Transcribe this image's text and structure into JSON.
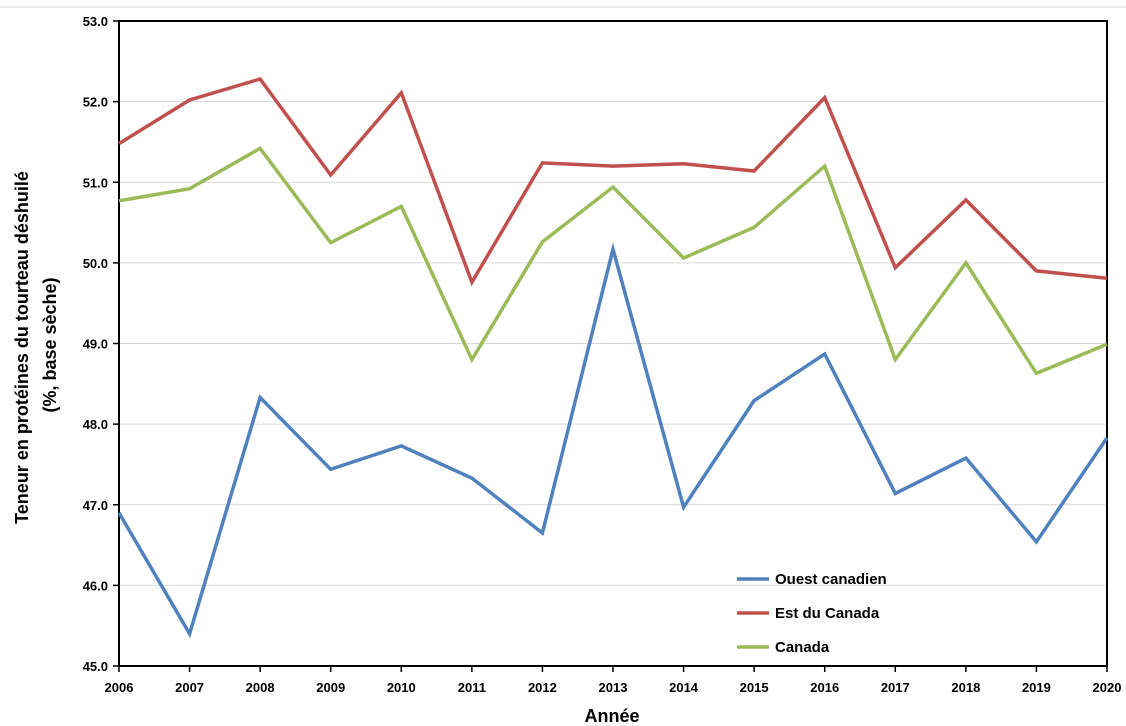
{
  "chart_data": {
    "type": "line",
    "title": "",
    "xlabel": "Année",
    "ylabel_lines": [
      "Teneur en protéines du tourteau déshuilé",
      "(%, base sèche)"
    ],
    "categories": [
      "2006",
      "2007",
      "2008",
      "2009",
      "2010",
      "2011",
      "2012",
      "2013",
      "2014",
      "2015",
      "2016",
      "2017",
      "2018",
      "2019",
      "2020"
    ],
    "ylim": [
      45.0,
      53.0
    ],
    "yticks": [
      "45.0",
      "46.0",
      "47.0",
      "48.0",
      "49.0",
      "50.0",
      "51.0",
      "52.0",
      "53.0"
    ],
    "grid": true,
    "legend_position": "bottom-right",
    "series": [
      {
        "name": "Ouest canadien",
        "color": "#4F81BD",
        "values": [
          46.9,
          45.4,
          48.33,
          47.44,
          47.73,
          47.33,
          46.65,
          50.17,
          46.97,
          48.29,
          48.87,
          47.14,
          47.58,
          46.54,
          47.83
        ]
      },
      {
        "name": "Est du Canada",
        "color": "#C0504D",
        "values": [
          51.48,
          52.02,
          52.28,
          51.09,
          52.11,
          49.76,
          51.24,
          51.2,
          51.23,
          51.14,
          52.05,
          49.94,
          50.78,
          49.9,
          49.81
        ]
      },
      {
        "name": "Canada",
        "color": "#9BBB59",
        "values": [
          50.77,
          50.92,
          51.42,
          50.25,
          50.7,
          48.8,
          50.26,
          50.94,
          50.06,
          50.44,
          51.2,
          48.8,
          50.0,
          48.63,
          48.99
        ]
      }
    ]
  }
}
